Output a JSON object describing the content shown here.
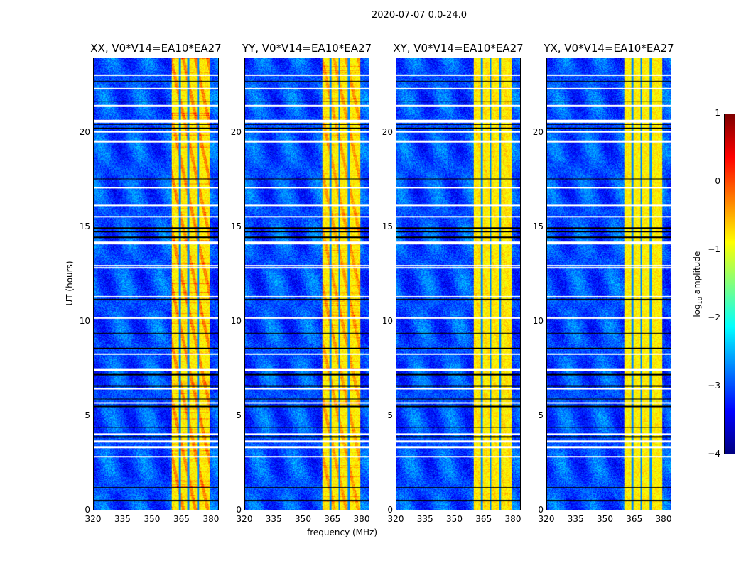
{
  "suptitle": "2020-07-07 0.0-24.0",
  "chart_data": {
    "type": "heatmap",
    "title": "2020-07-07 0.0-24.0",
    "xlabel": "frequency (MHz)",
    "ylabel": "UT (hours)",
    "xlim": [
      320,
      384
    ],
    "ylim": [
      0,
      24
    ],
    "xticks": [
      320,
      335,
      350,
      365,
      380
    ],
    "yticks": [
      0,
      5,
      10,
      15,
      20
    ],
    "colormap": "jet",
    "colorbar": {
      "label": "log10 amplitude",
      "label_main": "log",
      "label_sub": "10",
      "label_rest": " amplitude",
      "range": [
        -4,
        1
      ],
      "ticks": [
        1,
        0,
        -1,
        -2,
        -3,
        -4
      ]
    },
    "band_mhz": [
      360,
      379.5
    ],
    "band_level": -0.8,
    "background_level": -3.0,
    "band_gap_lines_mhz": [
      364,
      368.5,
      373.5
    ],
    "flagged_white_hours": [
      23.1,
      22.4,
      21.5,
      20.7,
      20.65,
      20.1,
      19.6,
      17.15,
      16.2,
      15.6,
      14.25,
      14.15,
      13.0,
      12.9,
      11.35,
      10.2,
      8.3,
      7.45,
      6.45,
      5.7,
      4.05,
      3.65,
      3.35,
      2.85
    ],
    "flagged_black_hours": [
      22.8,
      21.7,
      20.5,
      20.3,
      17.6,
      15.0,
      14.8,
      14.5,
      11.2,
      9.4,
      8.6,
      7.2,
      6.6,
      5.9,
      5.5,
      4.4,
      3.9,
      1.2,
      0.5
    ],
    "panels": [
      {
        "title": "XX, V0*V14=EA10*EA27",
        "band_boost": 0.5
      },
      {
        "title": "YY, V0*V14=EA10*EA27",
        "band_boost": 0.4
      },
      {
        "title": "XY, V0*V14=EA10*EA27",
        "band_boost": 0.1
      },
      {
        "title": "YX, V0*V14=EA10*EA27",
        "band_boost": 0.0
      }
    ]
  }
}
